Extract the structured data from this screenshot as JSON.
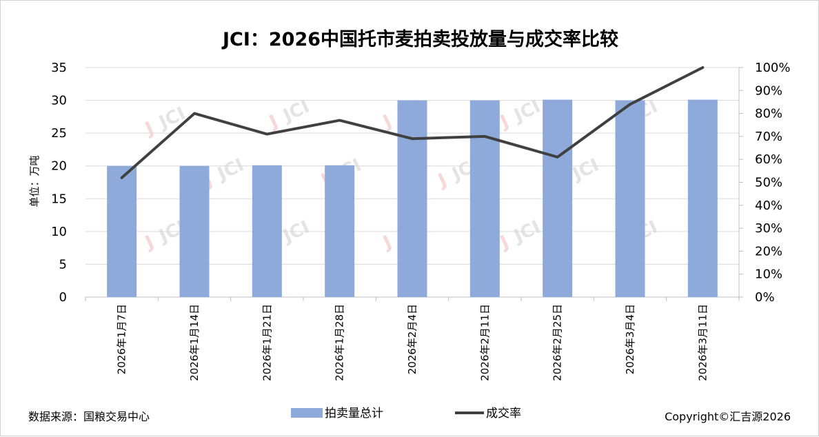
{
  "chart_data": {
    "type": "bar",
    "title": "JCI：2026中国托市麦拍卖投放量与成交率比较",
    "ylabel": "单位：万吨",
    "ylim": [
      0,
      35
    ],
    "y_ticks": [
      "0",
      "5",
      "10",
      "15",
      "20",
      "25",
      "30",
      "35"
    ],
    "y2lim": [
      0,
      1
    ],
    "y2_ticks": [
      "0%",
      "10%",
      "20%",
      "30%",
      "40%",
      "50%",
      "60%",
      "70%",
      "80%",
      "90%",
      "100%"
    ],
    "categories": [
      "2026年1月7日",
      "2026年1月14日",
      "2026年1月21日",
      "2026年1月28日",
      "2026年2月4日",
      "2026年2月11日",
      "2026年2月25日",
      "2026年3月4日",
      "2026年3月11日"
    ],
    "series": [
      {
        "name": "拍卖量总计",
        "type": "bar",
        "axis": "left",
        "color": "#8eaadb",
        "values": [
          20,
          20,
          20.1,
          20.1,
          30,
          30,
          30.1,
          30,
          30.1
        ]
      },
      {
        "name": "成交率",
        "type": "line",
        "axis": "right",
        "color": "#404040",
        "values": [
          0.52,
          0.8,
          0.71,
          0.77,
          0.69,
          0.7,
          0.61,
          0.84,
          1.0
        ]
      }
    ],
    "grid": true,
    "legend": "bottom"
  },
  "footer": {
    "source": "数据来源：国粮交易中心",
    "copyright": "Copyright©汇吉源2026"
  },
  "watermark": {
    "text": "JCI"
  }
}
